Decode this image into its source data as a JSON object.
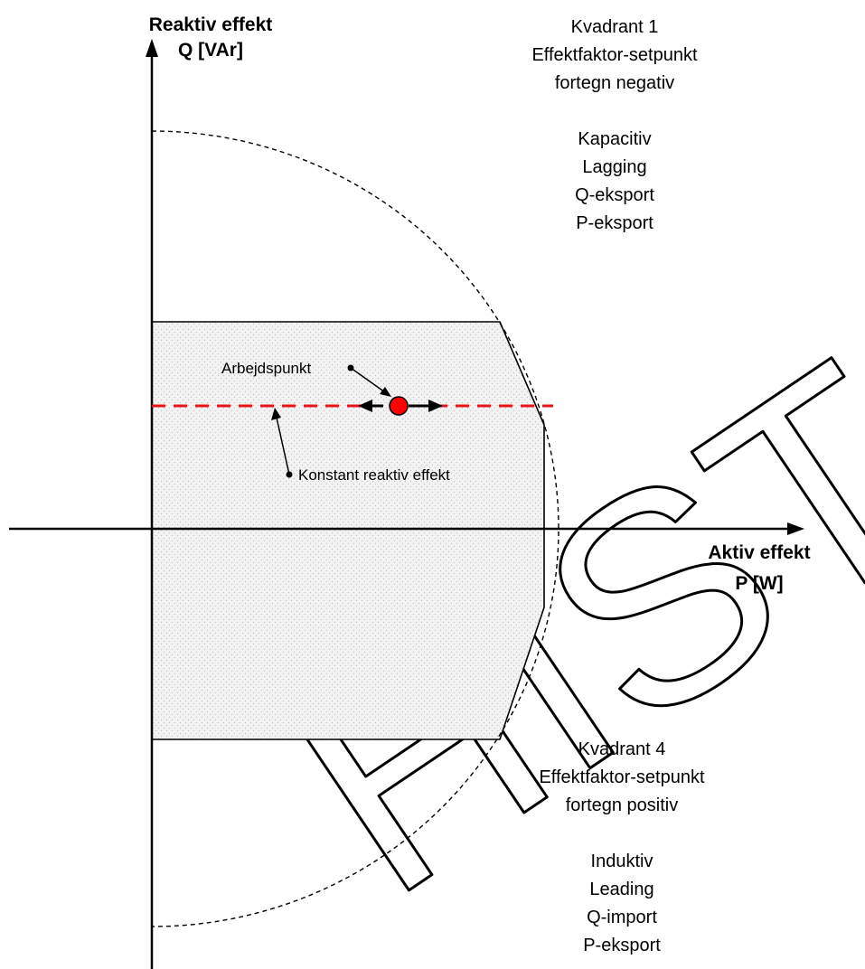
{
  "axes": {
    "y_title_line1": "Reaktiv effekt",
    "y_title_line2": "Q [VAr]",
    "x_title_line1": "Aktiv effekt",
    "x_title_line2": "P [W]"
  },
  "quadrant1": {
    "title": "Kvadrant 1",
    "setpoint": "Effektfaktor-setpunkt",
    "sign": "fortegn negativ",
    "props": [
      "Kapacitiv",
      "Lagging",
      "Q-eksport",
      "P-eksport"
    ]
  },
  "quadrant4": {
    "title": "Kvadrant 4",
    "setpoint": "Effektfaktor-setpunkt",
    "sign": "fortegn positiv",
    "props": [
      "Induktiv",
      "Leading",
      "Q-import",
      "P-eksport"
    ]
  },
  "annotations": {
    "operating_point": "Arbejdspunkt",
    "constant_reactive": "Konstant reaktiv effekt"
  },
  "watermark": "HISTORISK",
  "colors": {
    "line": "#000000",
    "region_fill": "#f1f1f1",
    "setpoint_line": "#e8141b",
    "operating_point": "#ff0000"
  }
}
